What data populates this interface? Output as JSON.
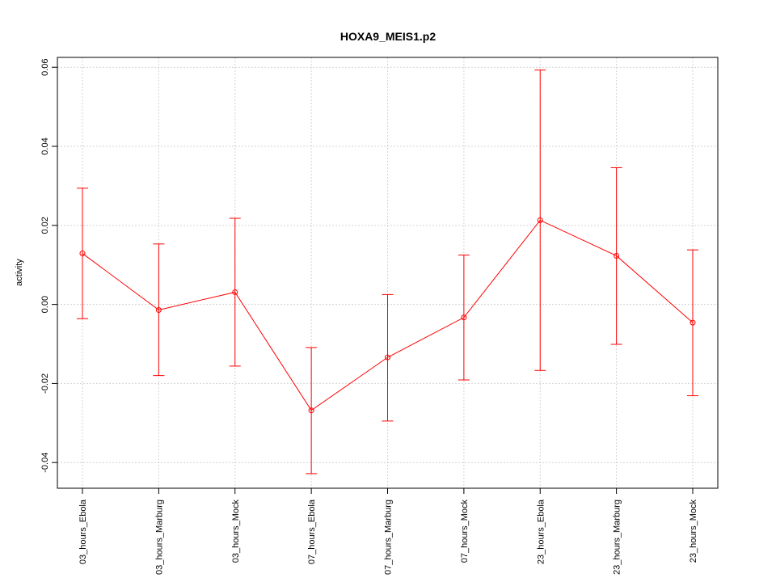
{
  "chart_data": {
    "type": "line",
    "title": "HOXA9_MEIS1.p2",
    "xlabel": "",
    "ylabel": "activity",
    "categories": [
      "03_hours_Ebola",
      "03_hours_Marburg",
      "03_hours_Mock",
      "07_hours_Ebola",
      "07_hours_Marburg",
      "07_hours_Mock",
      "23_hours_Ebola",
      "23_hours_Marburg",
      "23_hours_Mock"
    ],
    "ylim": [
      -0.0465,
      0.0625
    ],
    "yticks": [
      -0.04,
      -0.02,
      0.0,
      0.02,
      0.04,
      0.06
    ],
    "ytick_labels": [
      "-0.04",
      "-0.02",
      "0.00",
      "0.02",
      "0.04",
      "0.06"
    ],
    "grid": true,
    "series": [
      {
        "values": [
          0.0129,
          -0.0014,
          0.0031,
          -0.0268,
          -0.0134,
          -0.0033,
          0.0213,
          0.0123,
          -0.0046
        ],
        "error_low": [
          -0.0036,
          -0.018,
          -0.0156,
          -0.0428,
          -0.0295,
          -0.0191,
          -0.0167,
          -0.0101,
          -0.0231
        ],
        "error_high": [
          0.0294,
          0.0153,
          0.0218,
          -0.0109,
          0.0025,
          0.0125,
          0.0593,
          0.0346,
          0.0138
        ],
        "color": "#ff0000"
      }
    ]
  }
}
